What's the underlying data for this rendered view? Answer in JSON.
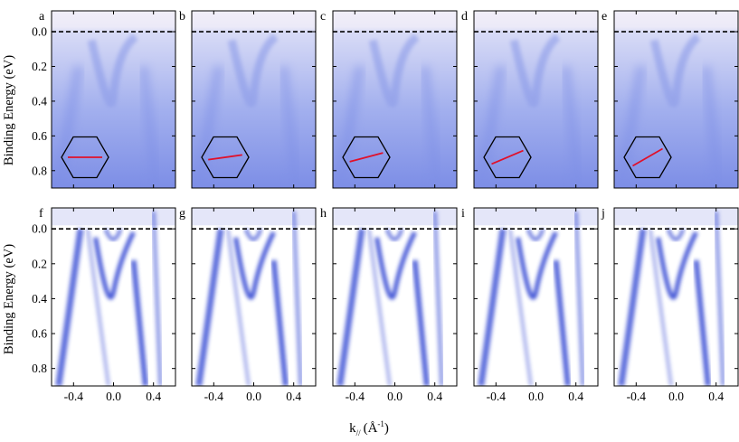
{
  "chart_data": {
    "type": "heatmap",
    "xlabel": "k// (Å⁻¹)",
    "xlabel_main": "k",
    "xlabel_sub": "//",
    "xlabel_unit": "(Å",
    "xlabel_sup": "-1",
    "xlabel_close": ")",
    "ylabel": "Binding Energy (eV)",
    "xlim": [
      -0.62,
      0.62
    ],
    "ylim": [
      -0.12,
      0.9
    ],
    "y_inverted": true,
    "xticks": [
      -0.4,
      0.0,
      0.4
    ],
    "xtick_labels": [
      "-0.4",
      "0.0",
      "0.4"
    ],
    "yticks": [
      0.0,
      0.2,
      0.4,
      0.6,
      0.8
    ],
    "ytick_labels": [
      "0.0",
      "0.2",
      "0.4",
      "0.6",
      "0.8"
    ],
    "fermi_level_line": 0.0,
    "rows": [
      {
        "kind": "raw",
        "panels": [
          {
            "label": "a",
            "cut_angle_deg": 0
          },
          {
            "label": "b",
            "cut_angle_deg": 8
          },
          {
            "label": "c",
            "cut_angle_deg": 15
          },
          {
            "label": "d",
            "cut_angle_deg": 23
          },
          {
            "label": "e",
            "cut_angle_deg": 30
          }
        ]
      },
      {
        "kind": "second-derivative",
        "panels": [
          {
            "label": "f"
          },
          {
            "label": "g"
          },
          {
            "label": "h"
          },
          {
            "label": "i"
          },
          {
            "label": "j"
          }
        ]
      }
    ],
    "colors": {
      "intensity_high": "#2a3fd0",
      "intensity_low": "#ffffff",
      "raw_background": "#c8cdf2",
      "cut_line": "#e0102a",
      "hexagon": "#000000"
    }
  }
}
